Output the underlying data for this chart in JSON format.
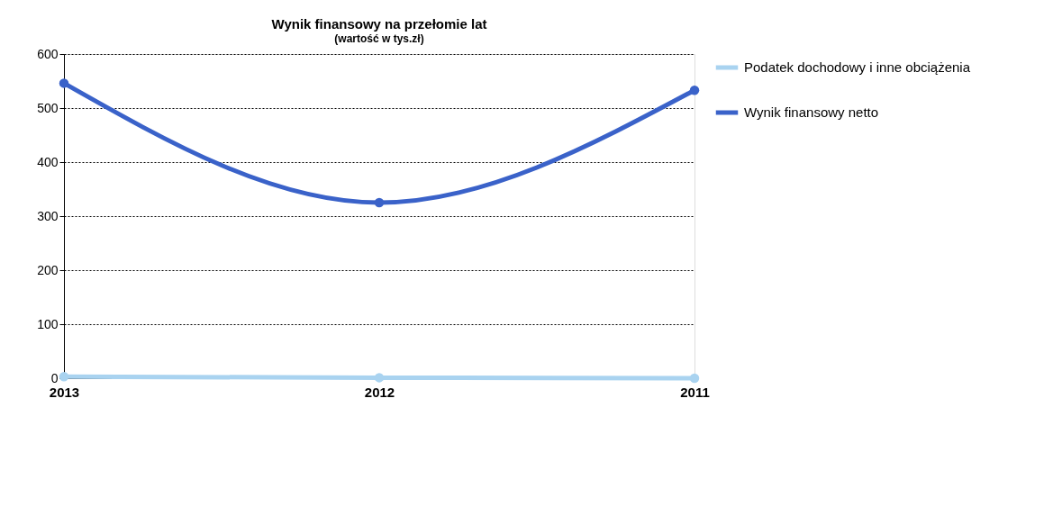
{
  "chart_data": {
    "type": "line",
    "title": "Wynik finansowy na przełomie lat",
    "subtitle": "(wartość w tys.zł)",
    "categories": [
      "2013",
      "2012",
      "2011"
    ],
    "series": [
      {
        "name": "Podatek dochodowy i inne obciążenia",
        "color": "#a9d3f0",
        "values": [
          3,
          1,
          0
        ]
      },
      {
        "name": "Wynik finansowy netto",
        "color": "#3a62c9",
        "values": [
          546,
          325,
          533
        ]
      }
    ],
    "ylim": [
      0,
      600
    ],
    "yticks": [
      0,
      100,
      200,
      300,
      400,
      500,
      600
    ],
    "grid": "y",
    "legend": "right",
    "marker": "circle",
    "line_style": "solid"
  }
}
